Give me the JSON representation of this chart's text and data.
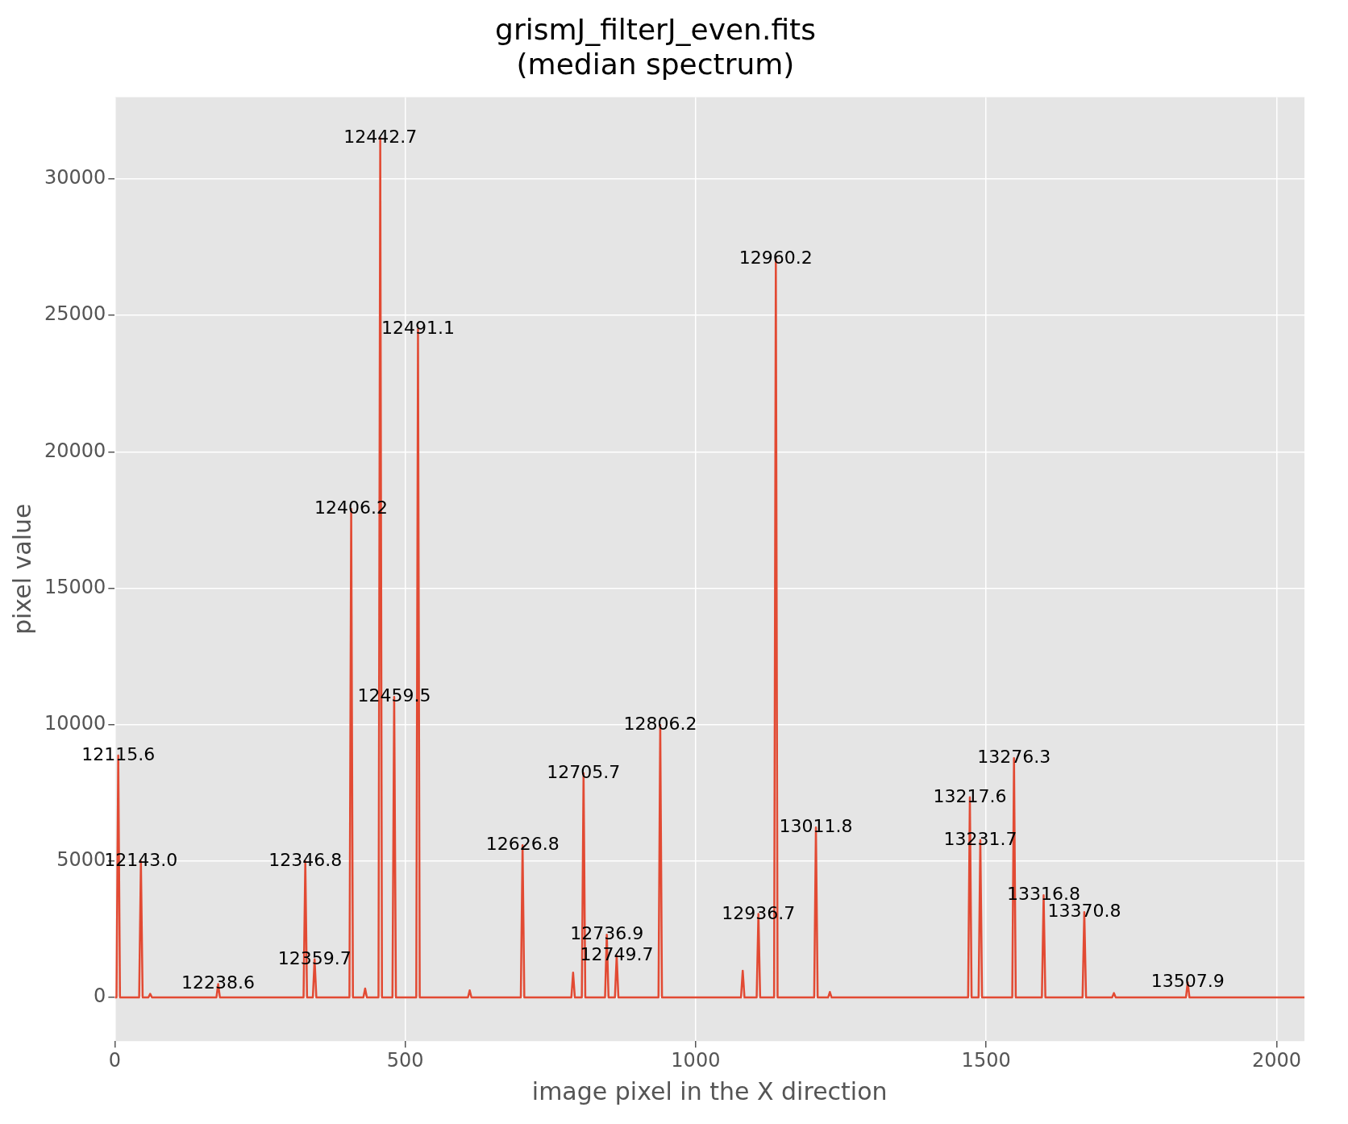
{
  "chart_data": {
    "type": "line",
    "title": "grismJ_filterJ_even.fits\n(median spectrum)",
    "xlabel": "image pixel in the X direction",
    "ylabel": "pixel value",
    "x": [
      0,
      3,
      6,
      9,
      42,
      45,
      48,
      58,
      61,
      64,
      175,
      178,
      181,
      325,
      328,
      331,
      341,
      344,
      347,
      404,
      407,
      410,
      428,
      431,
      434,
      454,
      457,
      460,
      478,
      481,
      484,
      519,
      522,
      525,
      608,
      611,
      614,
      699,
      702,
      705,
      786,
      789,
      792,
      804,
      807,
      810,
      844,
      847,
      850,
      861,
      864,
      867,
      936,
      939,
      942,
      1078,
      1081,
      1084,
      1105,
      1108,
      1111,
      1135,
      1138,
      1141,
      1204,
      1207,
      1210,
      1228,
      1231,
      1234,
      1469,
      1472,
      1475,
      1487,
      1490,
      1493,
      1545,
      1548,
      1551,
      1596,
      1599,
      1602,
      1666,
      1669,
      1672,
      1717,
      1720,
      1723,
      1844,
      1847,
      1850,
      2048
    ],
    "series": [
      {
        "color": "#e24a33",
        "values": [
          0,
          0,
          8870,
          0,
          0,
          4990,
          0,
          0,
          130,
          0,
          0,
          490,
          0,
          0,
          4990,
          0,
          0,
          1400,
          0,
          0,
          17900,
          0,
          0,
          330,
          0,
          0,
          31500,
          0,
          0,
          11020,
          0,
          0,
          24490,
          0,
          0,
          260,
          0,
          0,
          5580,
          0,
          0,
          910,
          0,
          0,
          8220,
          0,
          0,
          2300,
          0,
          0,
          1530,
          0,
          0,
          9980,
          0,
          0,
          980,
          0,
          0,
          3060,
          0,
          0,
          27060,
          0,
          0,
          6230,
          0,
          0,
          200,
          0,
          0,
          7340,
          0,
          0,
          5770,
          0,
          0,
          8770,
          0,
          0,
          3750,
          0,
          0,
          3130,
          0,
          0,
          160,
          0,
          0,
          550,
          0,
          0
        ]
      }
    ],
    "xlim": [
      0,
      2048
    ],
    "xticks": [
      0,
      500,
      1000,
      1500,
      2000
    ],
    "ylim": [
      -1600,
      33000
    ],
    "yticks": [
      0,
      5000,
      10000,
      15000,
      20000,
      25000,
      30000
    ],
    "grid": true,
    "legend": false,
    "marker": "none",
    "line_style": "solid",
    "annotations": [
      {
        "text": "12115.6",
        "x": 6,
        "y": 8870
      },
      {
        "text": "12143.0",
        "x": 45,
        "y": 4990
      },
      {
        "text": "12238.6",
        "x": 178,
        "y": 490
      },
      {
        "text": "12346.8",
        "x": 328,
        "y": 4990
      },
      {
        "text": "12359.7",
        "x": 344,
        "y": 1400
      },
      {
        "text": "12406.2",
        "x": 407,
        "y": 17900
      },
      {
        "text": "12442.7",
        "x": 457,
        "y": 31500
      },
      {
        "text": "12459.5",
        "x": 481,
        "y": 11020
      },
      {
        "text": "12491.1",
        "x": 522,
        "y": 24490
      },
      {
        "text": "12626.8",
        "x": 702,
        "y": 5580
      },
      {
        "text": "12705.7",
        "x": 807,
        "y": 8220
      },
      {
        "text": "12736.9",
        "x": 847,
        "y": 2300
      },
      {
        "text": "12749.7",
        "x": 864,
        "y": 1530
      },
      {
        "text": "12806.2",
        "x": 939,
        "y": 9980
      },
      {
        "text": "12936.7",
        "x": 1108,
        "y": 3060
      },
      {
        "text": "12960.2",
        "x": 1138,
        "y": 27060
      },
      {
        "text": "13011.8",
        "x": 1207,
        "y": 6230
      },
      {
        "text": "13217.6",
        "x": 1472,
        "y": 7340
      },
      {
        "text": "13231.7",
        "x": 1490,
        "y": 5770
      },
      {
        "text": "13276.3",
        "x": 1548,
        "y": 8770
      },
      {
        "text": "13316.8",
        "x": 1599,
        "y": 3750
      },
      {
        "text": "13370.8",
        "x": 1669,
        "y": 3130
      },
      {
        "text": "13507.9",
        "x": 1847,
        "y": 550
      }
    ]
  }
}
